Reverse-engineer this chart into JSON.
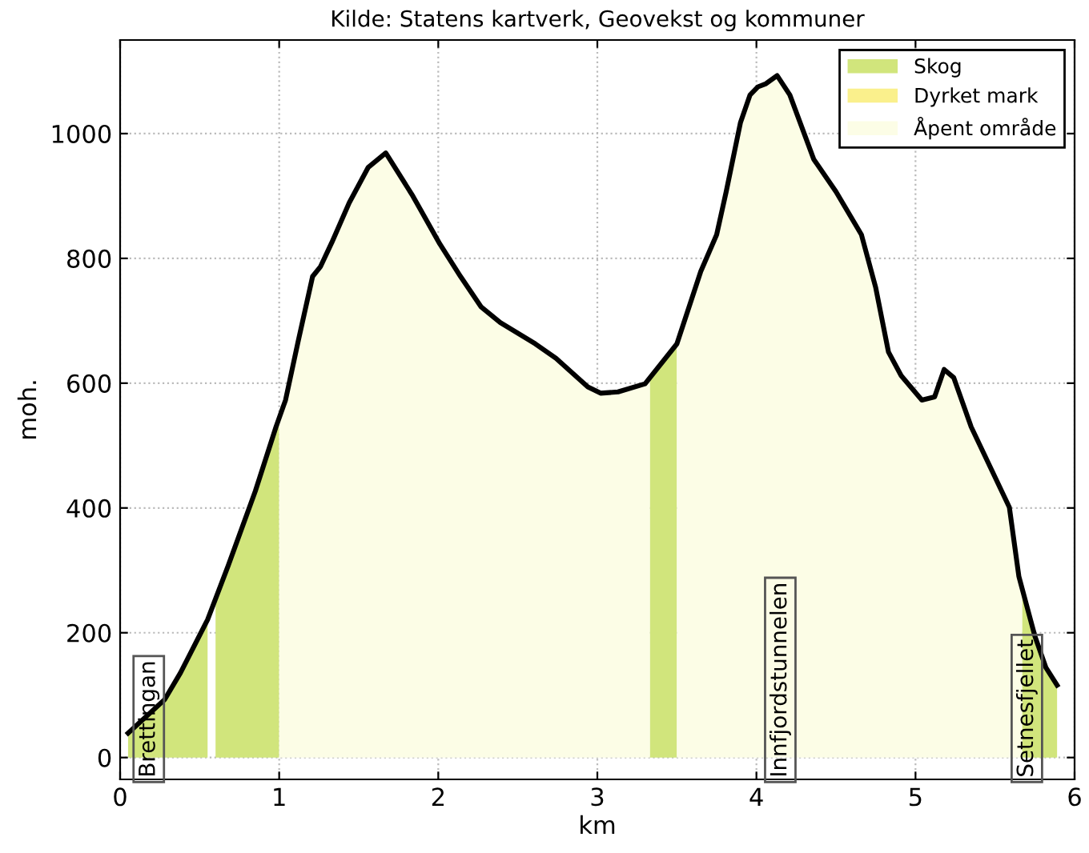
{
  "chart_data": {
    "type": "line",
    "title": "Kilde: Statens kartverk, Geovekst og kommuner",
    "xlabel": "km",
    "ylabel": "moh.",
    "xlim": [
      0,
      6
    ],
    "ylim": [
      -35,
      1150
    ],
    "xticks": [
      0,
      1,
      2,
      3,
      4,
      5,
      6
    ],
    "yticks": [
      0,
      200,
      400,
      600,
      800,
      1000
    ],
    "grid": true,
    "legend": "top right",
    "line_style": "solid",
    "marker": "none",
    "series": [
      {
        "name": "Skog",
        "type": "area",
        "color": "#d1e57c",
        "x": [
          0.05,
          0.28,
          0.38,
          0.55,
          null,
          0.6,
          0.68,
          0.85,
          0.98,
          1.0,
          null,
          3.33,
          3.5,
          null,
          5.67,
          5.75,
          5.82,
          5.89
        ],
        "values": [
          39,
          93,
          136,
          221,
          null,
          245,
          308,
          427,
          530,
          545,
          null,
          604,
          663,
          null,
          260,
          195,
          144,
          116
        ]
      },
      {
        "name": "Dyrket mark",
        "type": "area",
        "color": "#faf08c"
      },
      {
        "name": "Åpent område",
        "type": "area",
        "color": "#fcfde6",
        "x": [
          1.0,
          1.04,
          1.12,
          1.21,
          1.26,
          1.33,
          1.44,
          1.56,
          1.67,
          1.84,
          2.01,
          2.14,
          2.27,
          2.39,
          2.61,
          2.74,
          2.94,
          3.02,
          3.13,
          3.3,
          3.33,
          null,
          3.5,
          3.65,
          3.75,
          3.81,
          3.9,
          3.96,
          4.01,
          4.06,
          4.13,
          4.21,
          4.36,
          4.5,
          4.66,
          4.75,
          4.83,
          4.91,
          5.04,
          5.12,
          5.18,
          5.24,
          5.35,
          5.59,
          5.65,
          5.67
        ],
        "values": [
          545,
          573,
          668,
          771,
          787,
          825,
          889,
          946,
          969,
          900,
          823,
          771,
          722,
          697,
          663,
          640,
          594,
          584,
          586,
          599,
          604,
          null,
          663,
          779,
          838,
          907,
          1018,
          1062,
          1075,
          1080,
          1093,
          1062,
          959,
          907,
          838,
          753,
          650,
          612,
          573,
          578,
          622,
          609,
          530,
          401,
          290,
          260
        ]
      },
      {
        "color": "#000000",
        "x": [
          0.05,
          0.28,
          0.38,
          0.55,
          0.68,
          0.85,
          0.98,
          1.04,
          1.12,
          1.21,
          1.26,
          1.33,
          1.44,
          1.56,
          1.67,
          1.84,
          2.01,
          2.14,
          2.27,
          2.39,
          2.61,
          2.74,
          2.94,
          3.02,
          3.13,
          3.3,
          3.5,
          3.65,
          3.75,
          3.81,
          3.9,
          3.96,
          4.01,
          4.06,
          4.13,
          4.21,
          4.36,
          4.5,
          4.66,
          4.75,
          4.83,
          4.91,
          5.04,
          5.12,
          5.18,
          5.24,
          5.35,
          5.59,
          5.65,
          5.75,
          5.82,
          5.89
        ],
        "values": [
          39,
          93,
          136,
          221,
          308,
          427,
          530,
          573,
          668,
          771,
          787,
          825,
          889,
          946,
          969,
          900,
          823,
          771,
          722,
          697,
          663,
          640,
          594,
          584,
          586,
          599,
          663,
          779,
          838,
          907,
          1018,
          1062,
          1075,
          1080,
          1093,
          1062,
          959,
          907,
          838,
          753,
          650,
          612,
          573,
          578,
          622,
          609,
          530,
          401,
          290,
          195,
          144,
          116
        ]
      }
    ],
    "annotations": [
      {
        "text": "Brettingan",
        "x": 0.18,
        "y": 0
      },
      {
        "text": "Innfjordstunnelen",
        "x": 4.15,
        "y": 0
      },
      {
        "text": "Setnesfjellet",
        "x": 5.7,
        "y": 0
      }
    ]
  }
}
